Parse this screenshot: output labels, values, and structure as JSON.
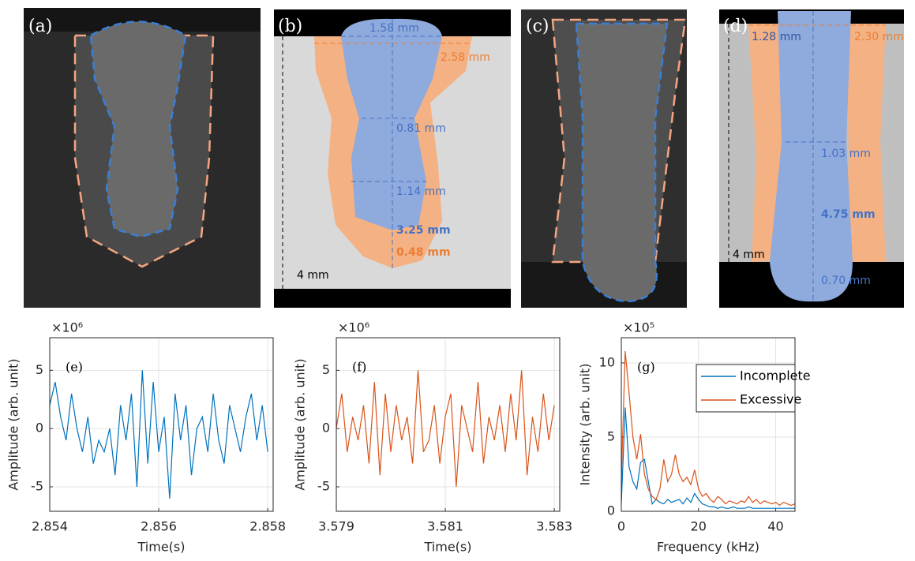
{
  "panels": [
    {
      "label": "(a)"
    },
    {
      "label": "(b)",
      "annotations": [
        "1.58 mm",
        "2.58 mm",
        "0.81 mm",
        "1.14 mm",
        "3.25 mm",
        "0.48 mm",
        "4 mm"
      ]
    },
    {
      "label": "(c)"
    },
    {
      "label": "(d)",
      "annotations": [
        "1.28 mm",
        "2.30 mm",
        "1.03 mm",
        "4.75 mm",
        "0.70 mm",
        "4 mm"
      ]
    }
  ],
  "chart_data": [
    {
      "type": "line",
      "panel_label": "(e)",
      "xlabel": "Time(s)",
      "ylabel": "Amplitude (arb. unit)",
      "y_exponent": "×10⁶",
      "color": "#0072bd",
      "grid": true,
      "xlim": [
        2.854,
        2.8581
      ],
      "xticks": [
        2.854,
        2.856,
        2.858
      ],
      "ylim": [
        -7.1,
        7.8
      ],
      "yticks": [
        -5,
        0,
        5
      ],
      "x": [
        2.854,
        2.8541,
        2.8542,
        2.8543,
        2.8544,
        2.8545,
        2.8546,
        2.8547,
        2.8548,
        2.8549,
        2.855,
        2.8551,
        2.8552,
        2.8553,
        2.8554,
        2.8555,
        2.8556,
        2.8557,
        2.8558,
        2.8559,
        2.856,
        2.8561,
        2.8562,
        2.8563,
        2.8564,
        2.8565,
        2.8566,
        2.8567,
        2.8568,
        2.8569,
        2.857,
        2.8571,
        2.8572,
        2.8573,
        2.8574,
        2.8575,
        2.8576,
        2.8577,
        2.8578,
        2.8579,
        2.858
      ],
      "values": [
        2,
        4,
        1,
        -1,
        3,
        0,
        -2,
        1,
        -3,
        -1,
        -2,
        0,
        -4,
        2,
        -1,
        3,
        -5,
        5,
        -3,
        4,
        -2,
        1,
        -6,
        3,
        -1,
        2,
        -4,
        0,
        1,
        -2,
        3,
        -1,
        -3,
        2,
        0,
        -2,
        1,
        3,
        -1,
        2,
        -2
      ]
    },
    {
      "type": "line",
      "panel_label": "(f)",
      "xlabel": "Time(s)",
      "ylabel": "Amplitude (arb. unit)",
      "y_exponent": "×10⁶",
      "color": "#d95319",
      "grid": true,
      "xlim": [
        3.579,
        3.5831
      ],
      "xticks": [
        3.579,
        3.581,
        3.583
      ],
      "ylim": [
        -7.1,
        7.8
      ],
      "yticks": [
        -5,
        0,
        5
      ],
      "x": [
        3.579,
        3.5791,
        3.5792,
        3.5793,
        3.5794,
        3.5795,
        3.5796,
        3.5797,
        3.5798,
        3.5799,
        3.58,
        3.5801,
        3.5802,
        3.5803,
        3.5804,
        3.5805,
        3.5806,
        3.5807,
        3.5808,
        3.5809,
        3.581,
        3.5811,
        3.5812,
        3.5813,
        3.5814,
        3.5815,
        3.5816,
        3.5817,
        3.5818,
        3.5819,
        3.582,
        3.5821,
        3.5822,
        3.5823,
        3.5824,
        3.5825,
        3.5826,
        3.5827,
        3.5828,
        3.5829,
        3.583
      ],
      "values": [
        0,
        3,
        -2,
        1,
        -1,
        2,
        -3,
        4,
        -4,
        3,
        -2,
        2,
        -1,
        1,
        -3,
        5,
        -2,
        -1,
        2,
        -3,
        1,
        3,
        -5,
        2,
        0,
        -2,
        4,
        -3,
        1,
        -1,
        2,
        -2,
        3,
        -1,
        5,
        -4,
        1,
        -2,
        3,
        -1,
        2
      ]
    },
    {
      "type": "line",
      "panel_label": "(g)",
      "xlabel": "Frequency (kHz)",
      "ylabel": "Intensity (arb. unit)",
      "y_exponent": "×10⁵",
      "grid": true,
      "legend": "top-right",
      "xlim": [
        0,
        45
      ],
      "xticks": [
        0,
        20,
        40
      ],
      "ylim": [
        0,
        11.7
      ],
      "yticks": [
        0,
        5,
        10
      ],
      "x": [
        0,
        1,
        2,
        3,
        4,
        5,
        6,
        7,
        8,
        9,
        10,
        11,
        12,
        13,
        14,
        15,
        16,
        17,
        18,
        19,
        20,
        21,
        22,
        23,
        24,
        25,
        26,
        27,
        28,
        29,
        30,
        31,
        32,
        33,
        34,
        35,
        36,
        37,
        38,
        39,
        40,
        41,
        42,
        43,
        44,
        45
      ],
      "series": [
        {
          "name": "Incomplete",
          "color": "#0072bd",
          "values": [
            0.5,
            7,
            3,
            2,
            1.5,
            3.3,
            3.5,
            2,
            0.5,
            0.8,
            0.6,
            0.5,
            0.8,
            0.6,
            0.7,
            0.8,
            0.5,
            0.9,
            0.6,
            1.2,
            0.8,
            0.5,
            0.4,
            0.3,
            0.3,
            0.2,
            0.3,
            0.2,
            0.2,
            0.3,
            0.2,
            0.2,
            0.2,
            0.3,
            0.2,
            0.2,
            0.2,
            0.2,
            0.2,
            0.2,
            0.2,
            0.2,
            0.2,
            0.2,
            0.2,
            0.2
          ]
        },
        {
          "name": "Excessive",
          "color": "#d95319",
          "values": [
            2,
            10.8,
            8,
            5,
            3.5,
            5.2,
            2.5,
            1.5,
            1,
            0.8,
            1.5,
            3.5,
            2,
            2.5,
            3.8,
            2.5,
            2,
            2.3,
            1.8,
            2.8,
            1.5,
            1,
            1.2,
            0.8,
            0.6,
            1,
            0.8,
            0.5,
            0.7,
            0.6,
            0.5,
            0.7,
            0.6,
            1,
            0.6,
            0.8,
            0.5,
            0.7,
            0.6,
            0.5,
            0.6,
            0.4,
            0.6,
            0.5,
            0.4,
            0.5
          ]
        }
      ]
    }
  ]
}
